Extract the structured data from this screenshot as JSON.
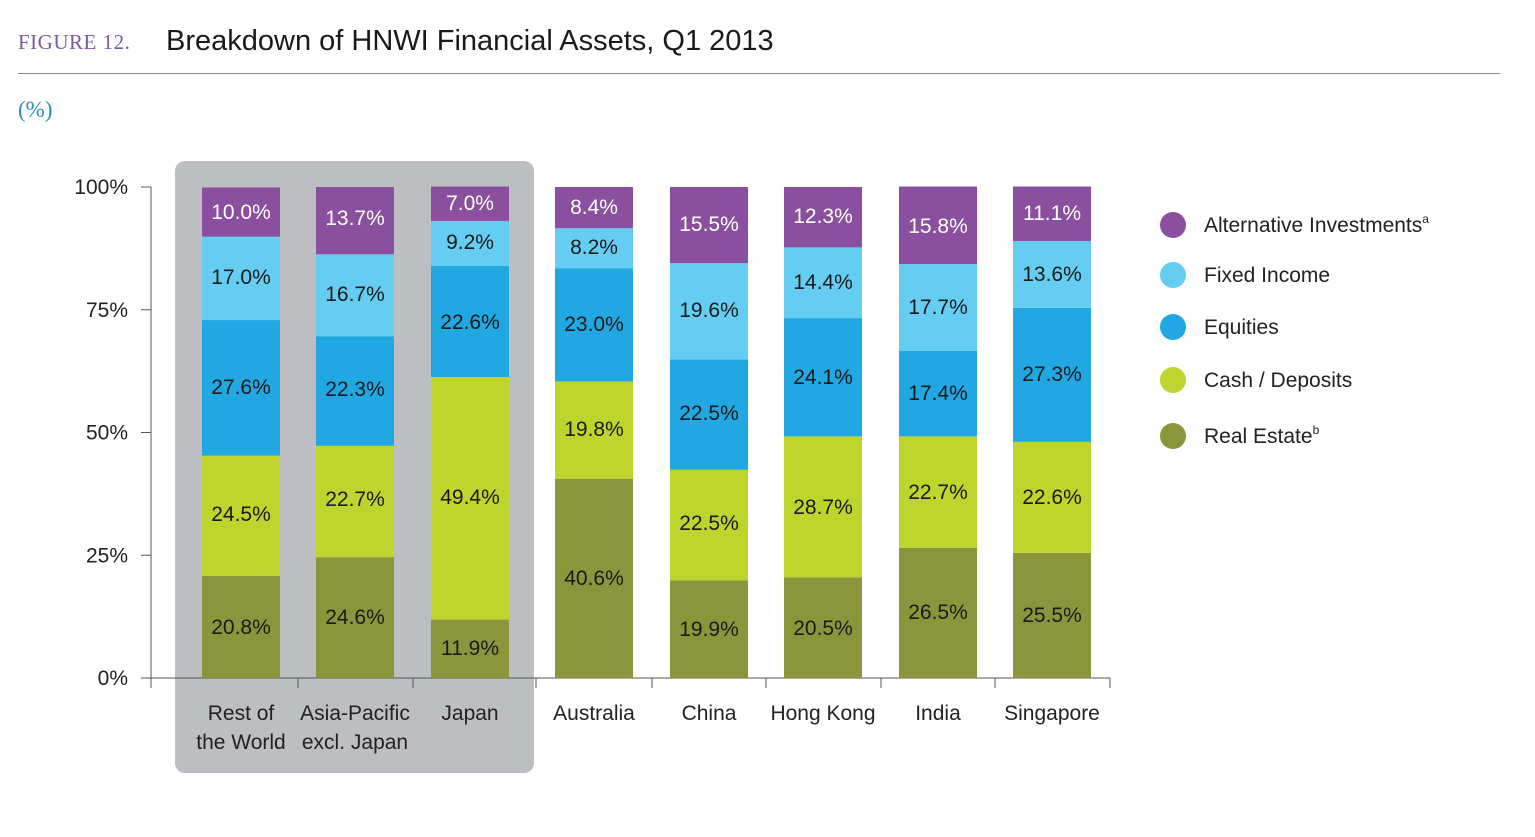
{
  "figure": {
    "label": "FIGURE 12.",
    "title": "Breakdown of HNWI Financial Assets, Q1 2013",
    "unit": "(%)"
  },
  "colors": {
    "alternative": "#8a4f9e",
    "fixed_income": "#66cdf2",
    "equities": "#21a7e2",
    "cash": "#bfd42d",
    "real_estate": "#8b963c",
    "highlight_panel": "#bdbec1",
    "axis": "#555555"
  },
  "chart_data": {
    "type": "bar",
    "stacked": true,
    "title": "Breakdown of HNWI Financial Assets, Q1 2013",
    "ylabel": "(%)",
    "ylim": [
      0,
      100
    ],
    "yticks": [
      {
        "value": 0,
        "label": "0%"
      },
      {
        "value": 25,
        "label": "25%"
      },
      {
        "value": 50,
        "label": "50%"
      },
      {
        "value": 75,
        "label": "75%"
      },
      {
        "value": 100,
        "label": "100%"
      }
    ],
    "categories": [
      {
        "line1": "Rest of",
        "line2": "the World"
      },
      {
        "line1": "Asia-Pacific",
        "line2": "excl. Japan"
      },
      {
        "line1": "Japan",
        "line2": ""
      },
      {
        "line1": "Australia",
        "line2": ""
      },
      {
        "line1": "China",
        "line2": ""
      },
      {
        "line1": "Hong Kong",
        "line2": ""
      },
      {
        "line1": "India",
        "line2": ""
      },
      {
        "line1": "Singapore",
        "line2": ""
      }
    ],
    "highlighted_categories": [
      0,
      1,
      2
    ],
    "series": [
      {
        "key": "real_estate",
        "name": "Real Estate",
        "sup": "b",
        "values": [
          20.8,
          24.6,
          11.9,
          40.6,
          19.9,
          20.5,
          26.5,
          25.5
        ],
        "labels": [
          "20.8%",
          "24.6%",
          "11.9%",
          "40.6%",
          "19.9%",
          "20.5%",
          "26.5%",
          "25.5%"
        ]
      },
      {
        "key": "cash",
        "name": "Cash / Deposits",
        "sup": "",
        "values": [
          24.5,
          22.7,
          49.4,
          19.8,
          22.5,
          28.7,
          22.7,
          22.6
        ],
        "labels": [
          "24.5%",
          "22.7%",
          "49.4%",
          "19.8%",
          "22.5%",
          "28.7%",
          "22.7%",
          "22.6%"
        ]
      },
      {
        "key": "equities",
        "name": "Equities",
        "sup": "",
        "values": [
          27.6,
          22.3,
          22.6,
          23.0,
          22.5,
          24.1,
          17.4,
          27.3
        ],
        "labels": [
          "27.6%",
          "22.3%",
          "22.6%",
          "23.0%",
          "22.5%",
          "24.1%",
          "17.4%",
          "27.3%"
        ]
      },
      {
        "key": "fixed_income",
        "name": "Fixed Income",
        "sup": "",
        "values": [
          17.0,
          16.7,
          9.2,
          8.2,
          19.6,
          14.4,
          17.7,
          13.6
        ],
        "labels": [
          "17.0%",
          "16.7%",
          "9.2%",
          "8.2%",
          "19.6%",
          "14.4%",
          "17.7%",
          "13.6%"
        ]
      },
      {
        "key": "alternative",
        "name": "Alternative Investments",
        "sup": "a",
        "values": [
          10.0,
          13.7,
          7.0,
          8.4,
          15.5,
          12.3,
          15.8,
          11.1
        ],
        "labels": [
          "10.0%",
          "13.7%",
          "7.0%",
          "8.4%",
          "15.5%",
          "12.3%",
          "15.8%",
          "11.1%"
        ]
      }
    ],
    "legend": {
      "placement": "right",
      "order": [
        "alternative",
        "fixed_income",
        "equities",
        "cash",
        "real_estate"
      ]
    }
  }
}
